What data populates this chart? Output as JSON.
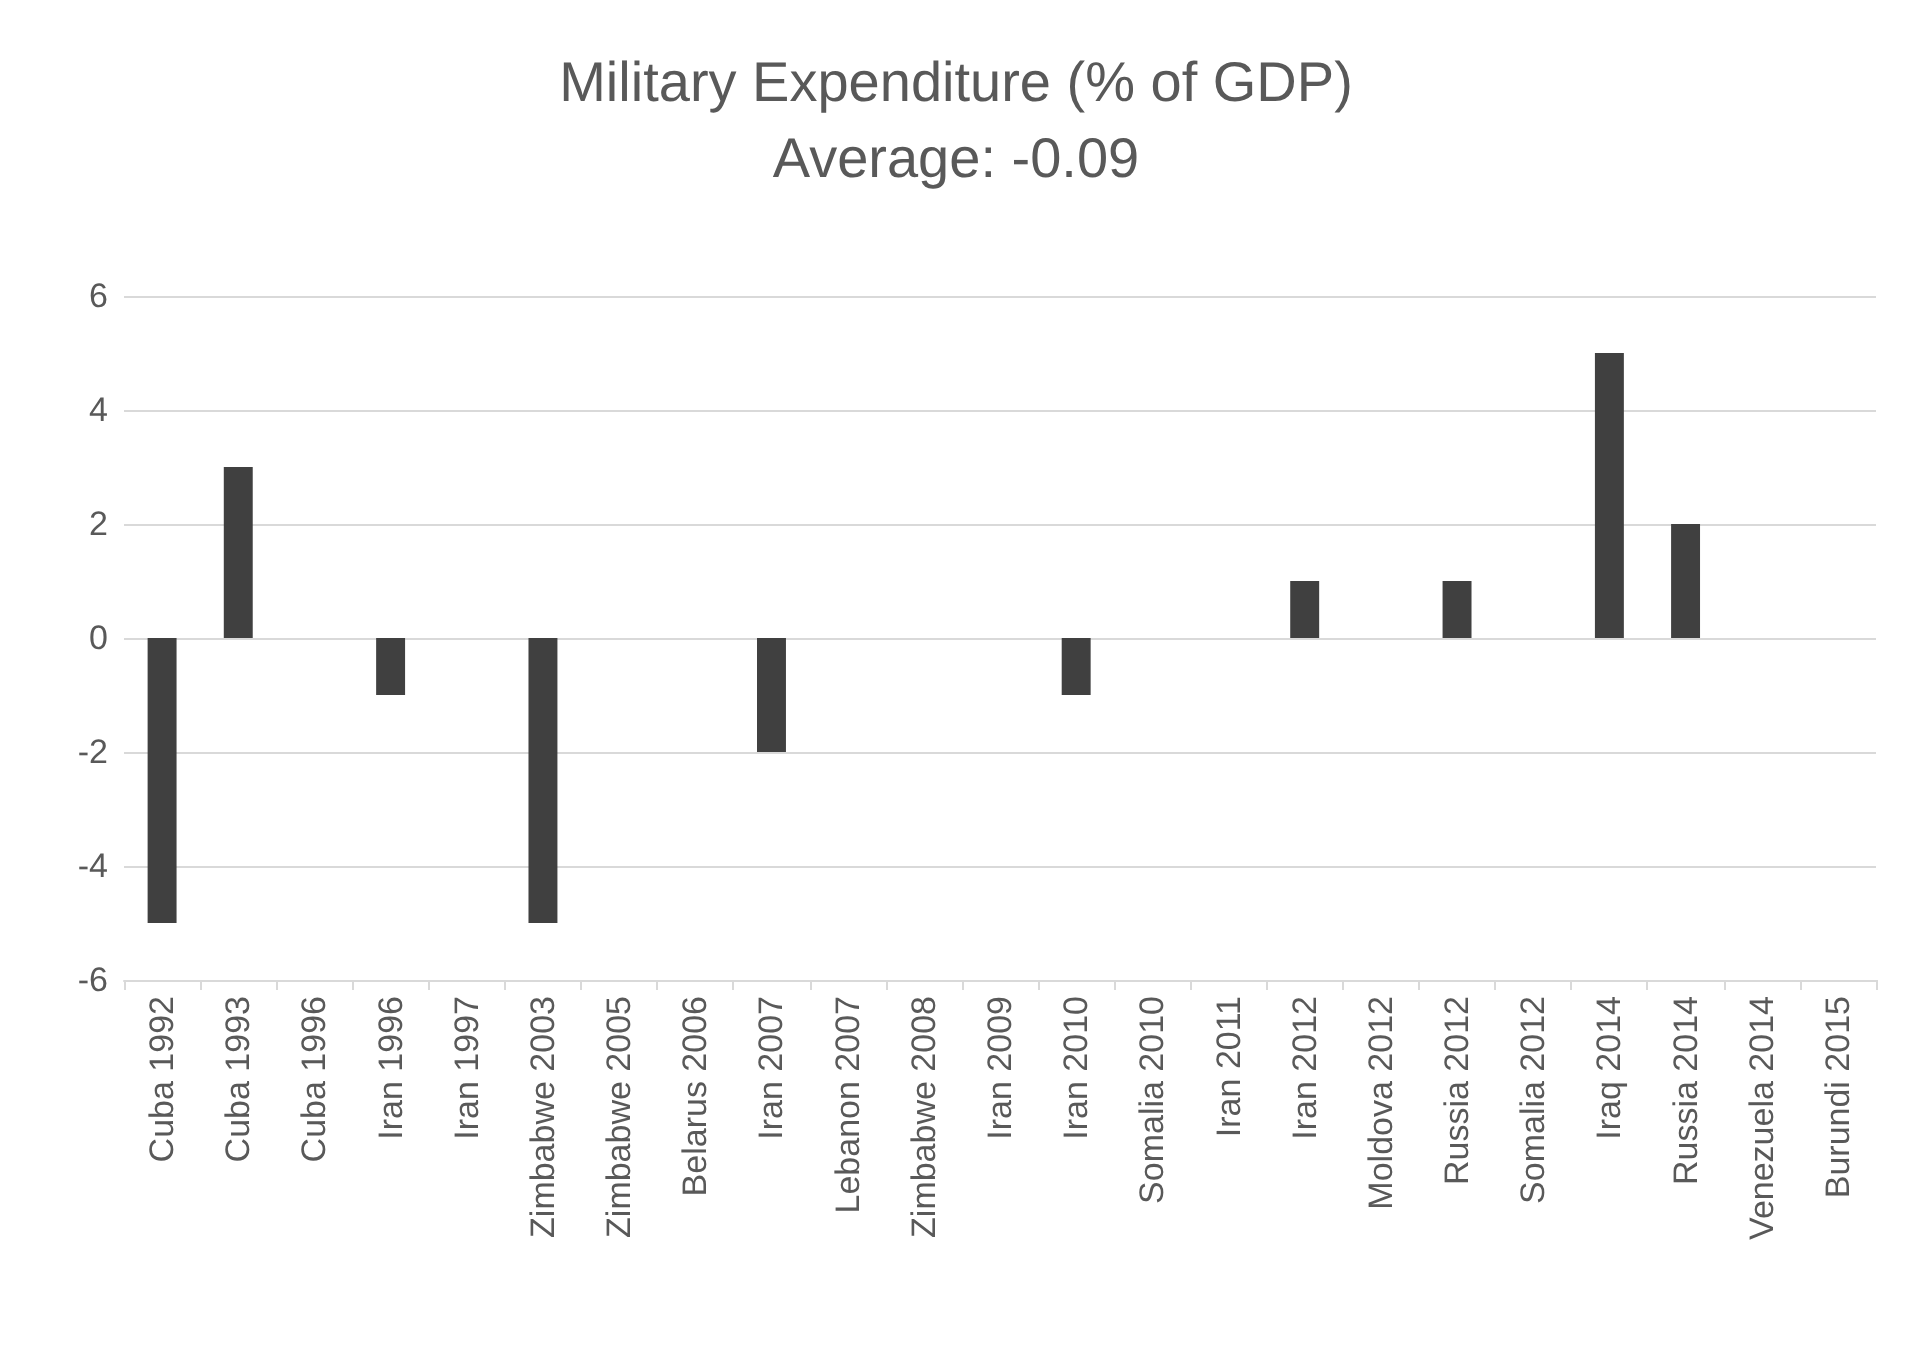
{
  "chart_data": {
    "type": "bar",
    "title": "Military Expenditure (% of GDP)",
    "subtitle": "Average: -0.09",
    "categories": [
      "Cuba 1992",
      "Cuba 1993",
      "Cuba 1996",
      "Iran 1996",
      "Iran 1997",
      "Zimbabwe 2003",
      "Zimbabwe 2005",
      "Belarus 2006",
      "Iran 2007",
      "Lebanon 2007",
      "Zimbabwe 2008",
      "Iran 2009",
      "Iran 2010",
      "Somalia 2010",
      "Iran 2011",
      "Iran 2012",
      "Moldova 2012",
      "Russia 2012",
      "Somalia 2012",
      "Iraq 2014",
      "Russia 2014",
      "Venezuela 2014",
      "Burundi 2015"
    ],
    "values": [
      -5,
      3,
      0,
      -1,
      0,
      -5,
      0,
      0,
      -2,
      0,
      0,
      0,
      -1,
      0,
      0,
      1,
      0,
      1,
      0,
      5,
      2,
      0,
      0
    ],
    "color": "#404040",
    "ylim": [
      -6,
      6
    ],
    "yticks": [
      -6,
      -4,
      -2,
      0,
      2,
      4,
      6
    ],
    "grid": "y"
  }
}
